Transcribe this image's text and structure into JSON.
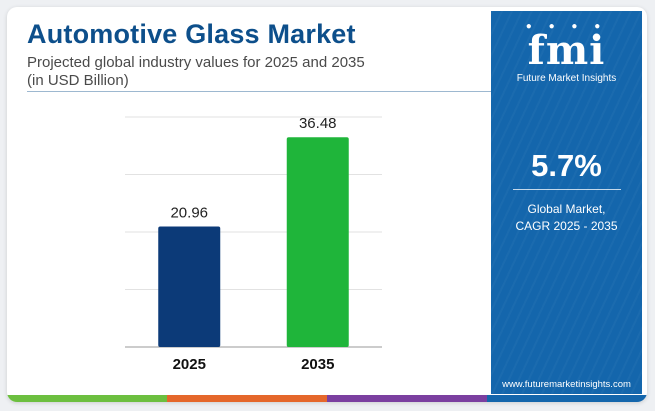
{
  "header": {
    "title": "Automotive Glass Market",
    "subtitle_line1": "Projected global industry values for 2025 and 2035",
    "subtitle_line2": "(in USD Billion)"
  },
  "chart_data": {
    "type": "bar",
    "categories": [
      "2025",
      "2035"
    ],
    "values": [
      20.96,
      36.48
    ],
    "value_labels": [
      "20.96",
      "36.48"
    ],
    "bar_colors": [
      "#0c3a78",
      "#1fb53a"
    ],
    "ylim": [
      0,
      40
    ],
    "grid": true,
    "title": "Automotive Glass Market",
    "xlabel": "",
    "ylabel": ""
  },
  "sidebar": {
    "logo_text": "fmi",
    "logo_subtitle": "Future Market Insights",
    "cagr_value": "5.7%",
    "cagr_label_line1": "Global Market,",
    "cagr_label_line2": "CAGR 2025 - 2035",
    "website": "www.futuremarketinsights.com"
  },
  "colors": {
    "title": "#0d4f8b",
    "panel": "#1466ac",
    "strip": [
      "#6cbf3f",
      "#e5672b",
      "#7b3fa0",
      "#1466ac"
    ]
  }
}
